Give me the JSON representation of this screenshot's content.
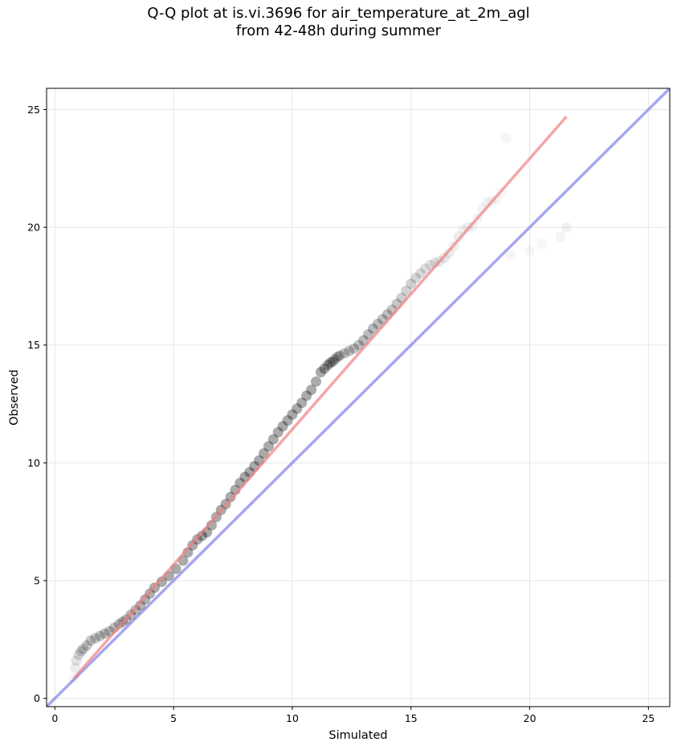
{
  "chart_data": {
    "type": "scatter",
    "title": "Q-Q plot at is.vi.3696 for air_temperature_at_2m_agl",
    "subtitle": "from 42-48h during summer",
    "xlabel": "Simulated",
    "ylabel": "Observed",
    "xlim": [
      -0.35,
      25.9
    ],
    "ylim": [
      -0.35,
      25.9
    ],
    "xticks": [
      0,
      5,
      10,
      15,
      20,
      25
    ],
    "yticks": [
      0,
      5,
      10,
      15,
      20,
      25
    ],
    "xtick_labels": [
      "0",
      "5",
      "10",
      "15",
      "20",
      "25"
    ],
    "ytick_labels": [
      "0",
      "5",
      "10",
      "15",
      "20",
      "25"
    ],
    "grid": true,
    "legend": "none",
    "colors": {
      "points": "#000000",
      "fit_line": "#f08080",
      "identity_line": "#8888ee",
      "grid": "#e6e6e6"
    },
    "fit_line": {
      "x": [
        0.8,
        21.55
      ],
      "y": [
        0.85,
        24.7
      ]
    },
    "identity_line": {
      "x": [
        -0.35,
        25.9
      ],
      "y": [
        -0.35,
        25.9
      ]
    },
    "points": {
      "x": [
        0.8,
        0.85,
        0.9,
        1.0,
        1.1,
        1.2,
        1.35,
        1.5,
        1.7,
        1.9,
        2.1,
        2.3,
        2.5,
        2.7,
        2.85,
        3.0,
        3.2,
        3.4,
        3.6,
        3.8,
        4.0,
        4.2,
        4.5,
        4.8,
        5.1,
        5.4,
        5.6,
        5.8,
        6.0,
        6.2,
        6.4,
        6.6,
        6.8,
        7.0,
        7.2,
        7.4,
        7.6,
        7.8,
        8.0,
        8.2,
        8.4,
        8.6,
        8.8,
        9.0,
        9.2,
        9.4,
        9.6,
        9.8,
        10.0,
        10.2,
        10.4,
        10.6,
        10.8,
        11.0,
        11.2,
        11.35,
        11.5,
        11.6,
        11.7,
        11.8,
        11.9,
        12.0,
        12.2,
        12.4,
        12.6,
        12.8,
        13.0,
        13.2,
        13.4,
        13.6,
        13.8,
        14.0,
        14.2,
        14.4,
        14.6,
        14.8,
        15.0,
        15.2,
        15.4,
        15.6,
        15.8,
        16.0,
        16.2,
        16.4,
        16.6,
        16.8,
        17.0,
        17.2,
        17.4,
        17.6,
        17.8,
        18.0,
        18.2,
        18.4,
        18.6,
        18.8,
        19.0,
        19.2,
        20.0,
        20.5,
        21.3,
        21.55
      ],
      "y": [
        0.85,
        1.3,
        1.6,
        1.85,
        2.0,
        2.1,
        2.25,
        2.45,
        2.55,
        2.65,
        2.75,
        2.85,
        3.0,
        3.15,
        3.25,
        3.35,
        3.55,
        3.75,
        3.95,
        4.2,
        4.45,
        4.7,
        4.95,
        5.2,
        5.5,
        5.85,
        6.2,
        6.5,
        6.75,
        6.9,
        7.05,
        7.35,
        7.7,
        8.0,
        8.25,
        8.55,
        8.85,
        9.15,
        9.4,
        9.6,
        9.85,
        10.1,
        10.4,
        10.7,
        11.0,
        11.3,
        11.55,
        11.8,
        12.05,
        12.3,
        12.55,
        12.85,
        13.1,
        13.45,
        13.85,
        14.0,
        14.15,
        14.25,
        14.3,
        14.4,
        14.5,
        14.55,
        14.65,
        14.75,
        14.85,
        15.0,
        15.2,
        15.45,
        15.7,
        15.9,
        16.1,
        16.3,
        16.5,
        16.75,
        17.0,
        17.3,
        17.6,
        17.85,
        18.05,
        18.25,
        18.4,
        18.5,
        18.55,
        18.7,
        18.9,
        19.2,
        19.6,
        19.9,
        20.0,
        20.05,
        20.4,
        20.8,
        21.05,
        21.1,
        21.2,
        21.5,
        23.8,
        18.8,
        19.0,
        19.3,
        19.6,
        20.0
      ],
      "opacity": [
        0.1,
        0.2,
        0.3,
        0.4,
        0.5,
        0.55,
        0.6,
        0.6,
        0.65,
        0.65,
        0.7,
        0.7,
        0.7,
        0.7,
        0.7,
        0.75,
        0.8,
        0.8,
        0.85,
        0.9,
        0.9,
        0.95,
        0.95,
        0.95,
        0.95,
        0.95,
        0.95,
        0.95,
        0.95,
        0.95,
        0.95,
        0.95,
        0.95,
        0.95,
        0.95,
        0.95,
        0.95,
        0.95,
        0.95,
        0.95,
        0.95,
        0.95,
        0.95,
        0.95,
        0.95,
        0.95,
        0.95,
        0.95,
        0.95,
        0.95,
        0.95,
        0.95,
        0.95,
        0.95,
        0.95,
        0.95,
        0.9,
        0.85,
        0.8,
        0.75,
        0.7,
        0.7,
        0.65,
        0.65,
        0.65,
        0.7,
        0.75,
        0.75,
        0.75,
        0.7,
        0.7,
        0.7,
        0.65,
        0.6,
        0.55,
        0.5,
        0.5,
        0.45,
        0.4,
        0.35,
        0.3,
        0.3,
        0.25,
        0.25,
        0.2,
        0.2,
        0.2,
        0.15,
        0.15,
        0.15,
        0.12,
        0.12,
        0.12,
        0.12,
        0.1,
        0.1,
        0.1,
        0.1,
        0.1,
        0.1,
        0.12,
        0.15
      ]
    }
  }
}
